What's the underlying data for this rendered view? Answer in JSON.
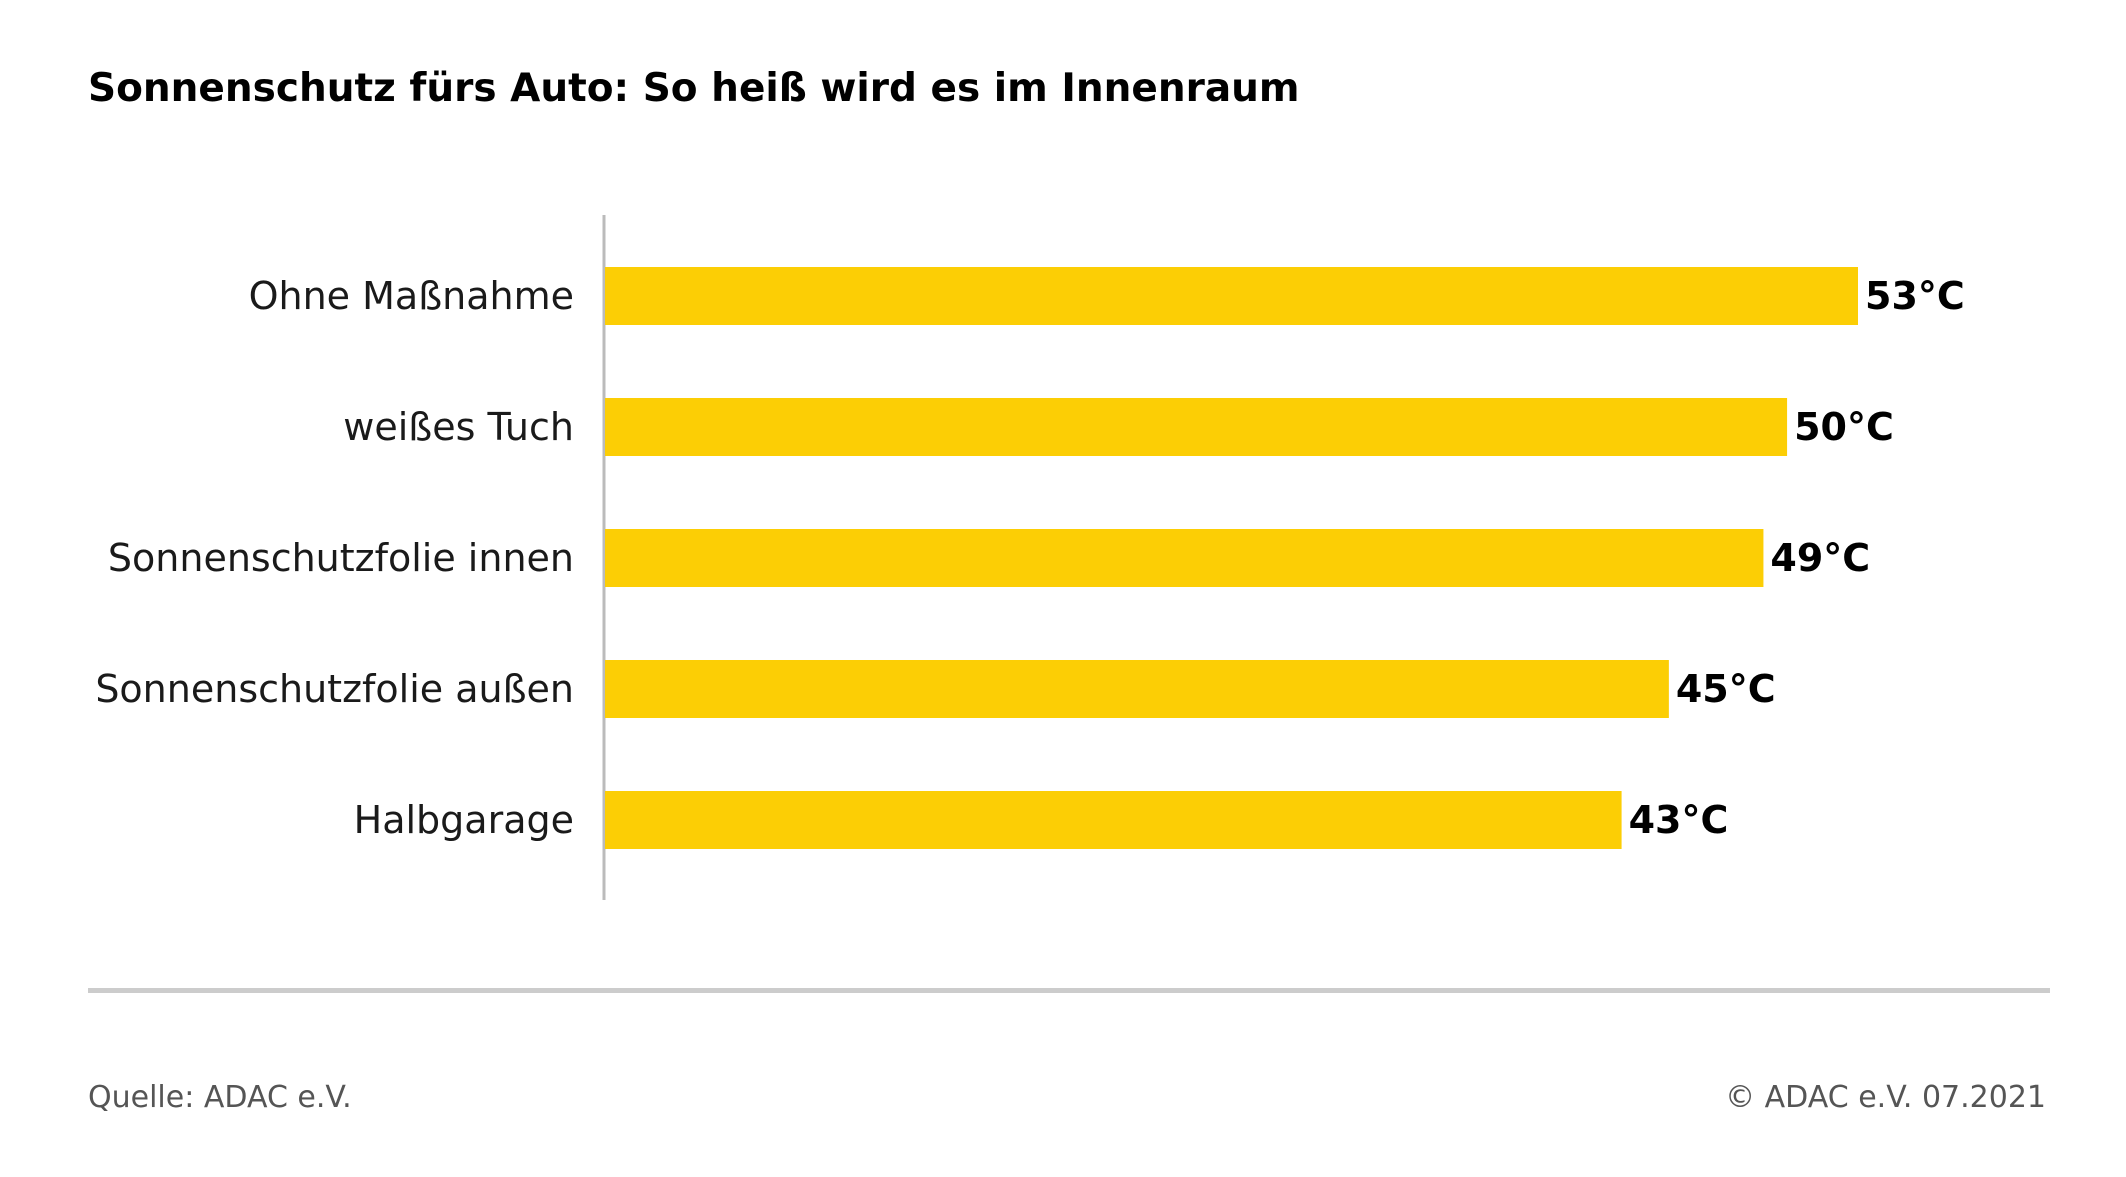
{
  "title": "Sonnenschutz fürs Auto: So heiß wird es im Innenraum",
  "chart_data": {
    "type": "bar",
    "orientation": "horizontal",
    "categories": [
      "Ohne Maßnahme",
      "weißes Tuch",
      "Sonnenschutzfolie innen",
      "Sonnenschutzfolie außen",
      "Halbgarage"
    ],
    "values": [
      53,
      50,
      49,
      45,
      43
    ],
    "value_labels": [
      "53°C",
      "50°C",
      "49°C",
      "45°C",
      "43°C"
    ],
    "unit": "°C",
    "xlim": [
      0,
      53
    ],
    "grid": false,
    "bar_color": "#FCCE05",
    "axis_color": "#bbbbbb"
  },
  "footer": {
    "source": "Quelle: ADAC e.V.",
    "copyright": "© ADAC e.V. 07.2021"
  },
  "colors": {
    "divider": "#cccccc",
    "footer_text": "#555555"
  }
}
